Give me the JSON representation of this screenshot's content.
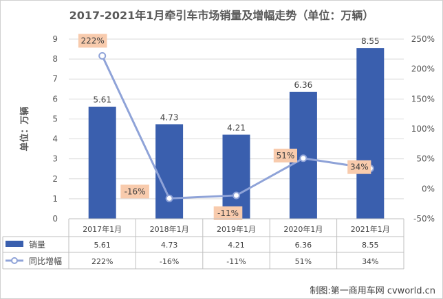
{
  "chart_data": {
    "type": "bar",
    "title": "2017-2021年1月牵引车市场销量及增幅走势（单位：万辆）",
    "ylabel": "单位：万辆",
    "categories": [
      "2017年1月",
      "2018年1月",
      "2019年1月",
      "2020年1月",
      "2021年1月"
    ],
    "series": [
      {
        "name": "销量",
        "type": "bar",
        "axis": "left",
        "color": "#3A5FAE",
        "values": [
          5.61,
          4.73,
          4.21,
          6.36,
          8.55
        ],
        "labels": [
          "5.61",
          "4.73",
          "4.21",
          "6.36",
          "8.55"
        ]
      },
      {
        "name": "同比增幅",
        "type": "line",
        "axis": "right",
        "color": "#8FA3D8",
        "values": [
          222,
          -16,
          -11,
          51,
          34
        ],
        "labels": [
          "222%",
          "-16%",
          "-11%",
          "51%",
          "34%"
        ]
      }
    ],
    "ylim": [
      0,
      9
    ],
    "yticks": [
      "0",
      "1",
      "2",
      "3",
      "4",
      "5",
      "6",
      "7",
      "8",
      "9"
    ],
    "y2lim": [
      -50,
      250
    ],
    "y2ticks": [
      "-50%",
      "0%",
      "50%",
      "100%",
      "150%",
      "200%",
      "250%"
    ],
    "grid": true,
    "legend": "bottom-table",
    "label_bg": "#F8CBAD"
  },
  "credit": "制图:第一商用车网 cvworld.cn"
}
